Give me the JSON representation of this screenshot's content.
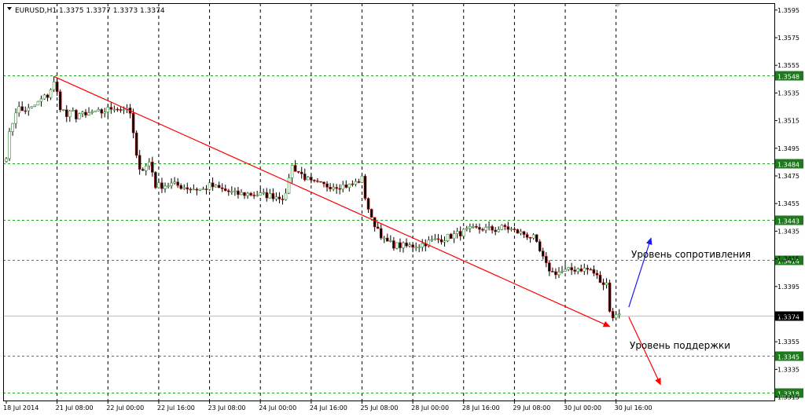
{
  "header": {
    "symbol": "EURUSD,H1",
    "ohlc": "1.3375 1.3377 1.3373 1.3374"
  },
  "annotations": {
    "resistance_label": "Уровень сопротивления",
    "support_label": "Уровень поддержки"
  },
  "colors": {
    "bull_body": "#ffffff",
    "bear_body": "#000000",
    "wick": "#000000",
    "bull_candle_tint": "#2e8b2e",
    "bear_candle_tint": "#c01818",
    "level_line": "#2c9b2c",
    "level_tag_bg": "#1f7a1f",
    "trend_line": "#ff0000",
    "arrow_up": "#1a1aff",
    "arrow_down": "#ff0000",
    "current_line": "#c0c0c0",
    "grid": "#000000"
  },
  "chart_data": {
    "type": "candlestick",
    "title": "EURUSD,H1",
    "ylim": [
      1.33125,
      1.36
    ],
    "y_ticks": [
      "1.3595",
      "1.3575",
      "1.3555",
      "1.3535",
      "1.3515",
      "1.3495",
      "1.3475",
      "1.3455",
      "1.3435",
      "1.3415",
      "1.3395",
      "1.3375",
      "1.3355",
      "1.3335",
      "1.3315"
    ],
    "x_ticks": [
      {
        "label": "18 Jul 2014",
        "bar": 0
      },
      {
        "label": "21 Jul 08:00",
        "bar": 16
      },
      {
        "label": "22 Jul 00:00",
        "bar": 32
      },
      {
        "label": "22 Jul 16:00",
        "bar": 48
      },
      {
        "label": "23 Jul 08:00",
        "bar": 64
      },
      {
        "label": "24 Jul 00:00",
        "bar": 80
      },
      {
        "label": "24 Jul 16:00",
        "bar": 96
      },
      {
        "label": "25 Jul 08:00",
        "bar": 112
      },
      {
        "label": "28 Jul 00:00",
        "bar": 128
      },
      {
        "label": "28 Jul 16:00",
        "bar": 144
      },
      {
        "label": "29 Jul 08:00",
        "bar": 160
      },
      {
        "label": "30 Jul 00:00",
        "bar": 176
      },
      {
        "label": "30 Jul 16:00",
        "bar": 192
      }
    ],
    "levels": [
      {
        "value": 1.3548,
        "label": "1.3548"
      },
      {
        "value": 1.3484,
        "label": "1.3484"
      },
      {
        "value": 1.3443,
        "label": "1.3443"
      },
      {
        "value": 1.3414,
        "label": "1.3414"
      },
      {
        "value": 1.3345,
        "label": "1.3345"
      },
      {
        "value": 1.3318,
        "label": "1.3318"
      }
    ],
    "current_price": {
      "value": 1.3374,
      "label": "1.3374"
    },
    "trendline": {
      "from": [
        15,
        1.3547
      ],
      "to": [
        190,
        1.3366
      ]
    },
    "arrows": [
      {
        "name": "resistance",
        "from": [
          196,
          1.338
        ],
        "to": [
          203,
          1.343
        ]
      },
      {
        "name": "support",
        "from": [
          196,
          1.3373
        ],
        "to": [
          206,
          1.3324
        ]
      }
    ],
    "anchors": [
      [
        0,
        1.349
      ],
      [
        1,
        1.3505
      ],
      [
        2,
        1.3514
      ],
      [
        3,
        1.3522
      ],
      [
        4,
        1.3524
      ],
      [
        5,
        1.3522
      ],
      [
        6,
        1.3523
      ],
      [
        7,
        1.3523
      ],
      [
        8,
        1.3524
      ],
      [
        9,
        1.3526
      ],
      [
        10,
        1.3528
      ],
      [
        11,
        1.353
      ],
      [
        12,
        1.3532
      ],
      [
        13,
        1.3533
      ],
      [
        14,
        1.3538
      ],
      [
        15,
        1.3542
      ],
      [
        16,
        1.3535
      ],
      [
        17,
        1.3525
      ],
      [
        18,
        1.3522
      ],
      [
        19,
        1.3518
      ],
      [
        20,
        1.352
      ],
      [
        21,
        1.3521
      ],
      [
        22,
        1.3518
      ],
      [
        23,
        1.352
      ],
      [
        24,
        1.3519
      ],
      [
        25,
        1.3518
      ],
      [
        26,
        1.352
      ],
      [
        27,
        1.3521
      ],
      [
        28,
        1.352
      ],
      [
        29,
        1.3521
      ],
      [
        30,
        1.3521
      ],
      [
        31,
        1.3522
      ],
      [
        32,
        1.3523
      ],
      [
        33,
        1.3524
      ],
      [
        34,
        1.3525
      ],
      [
        35,
        1.3524
      ],
      [
        36,
        1.3523
      ],
      [
        37,
        1.3524
      ],
      [
        38,
        1.3522
      ],
      [
        39,
        1.352
      ],
      [
        40,
        1.3505
      ],
      [
        41,
        1.3488
      ],
      [
        42,
        1.3482
      ],
      [
        43,
        1.348
      ],
      [
        44,
        1.3482
      ],
      [
        45,
        1.3485
      ],
      [
        46,
        1.3478
      ],
      [
        47,
        1.3468
      ],
      [
        48,
        1.3468
      ],
      [
        49,
        1.3468
      ],
      [
        52,
        1.3469
      ],
      [
        58,
        1.3466
      ],
      [
        62,
        1.3465
      ],
      [
        64,
        1.3468
      ],
      [
        68,
        1.3465
      ],
      [
        72,
        1.3462
      ],
      [
        76,
        1.3462
      ],
      [
        82,
        1.3461
      ],
      [
        86,
        1.346
      ],
      [
        88,
        1.346
      ],
      [
        89,
        1.3475
      ],
      [
        90,
        1.3482
      ],
      [
        93,
        1.3476
      ],
      [
        96,
        1.347
      ],
      [
        100,
        1.3468
      ],
      [
        104,
        1.3468
      ],
      [
        108,
        1.3468
      ],
      [
        110,
        1.347
      ],
      [
        112,
        1.3473
      ],
      [
        113,
        1.346
      ],
      [
        115,
        1.3443
      ],
      [
        117,
        1.3437
      ],
      [
        119,
        1.3428
      ],
      [
        122,
        1.3425
      ],
      [
        126,
        1.3424
      ],
      [
        130,
        1.3425
      ],
      [
        134,
        1.3428
      ],
      [
        138,
        1.343
      ],
      [
        142,
        1.3433
      ],
      [
        146,
        1.3436
      ],
      [
        150,
        1.3437
      ],
      [
        154,
        1.3436
      ],
      [
        157,
        1.3438
      ],
      [
        160,
        1.3435
      ],
      [
        163,
        1.3433
      ],
      [
        166,
        1.343
      ],
      [
        168,
        1.342
      ],
      [
        170,
        1.341
      ],
      [
        172,
        1.3405
      ],
      [
        176,
        1.3406
      ],
      [
        180,
        1.3408
      ],
      [
        184,
        1.3407
      ],
      [
        186,
        1.3402
      ],
      [
        188,
        1.3395
      ],
      [
        189,
        1.34
      ],
      [
        190,
        1.3378
      ],
      [
        191,
        1.3372
      ],
      [
        192,
        1.3376
      ],
      [
        193,
        1.3374
      ]
    ]
  }
}
